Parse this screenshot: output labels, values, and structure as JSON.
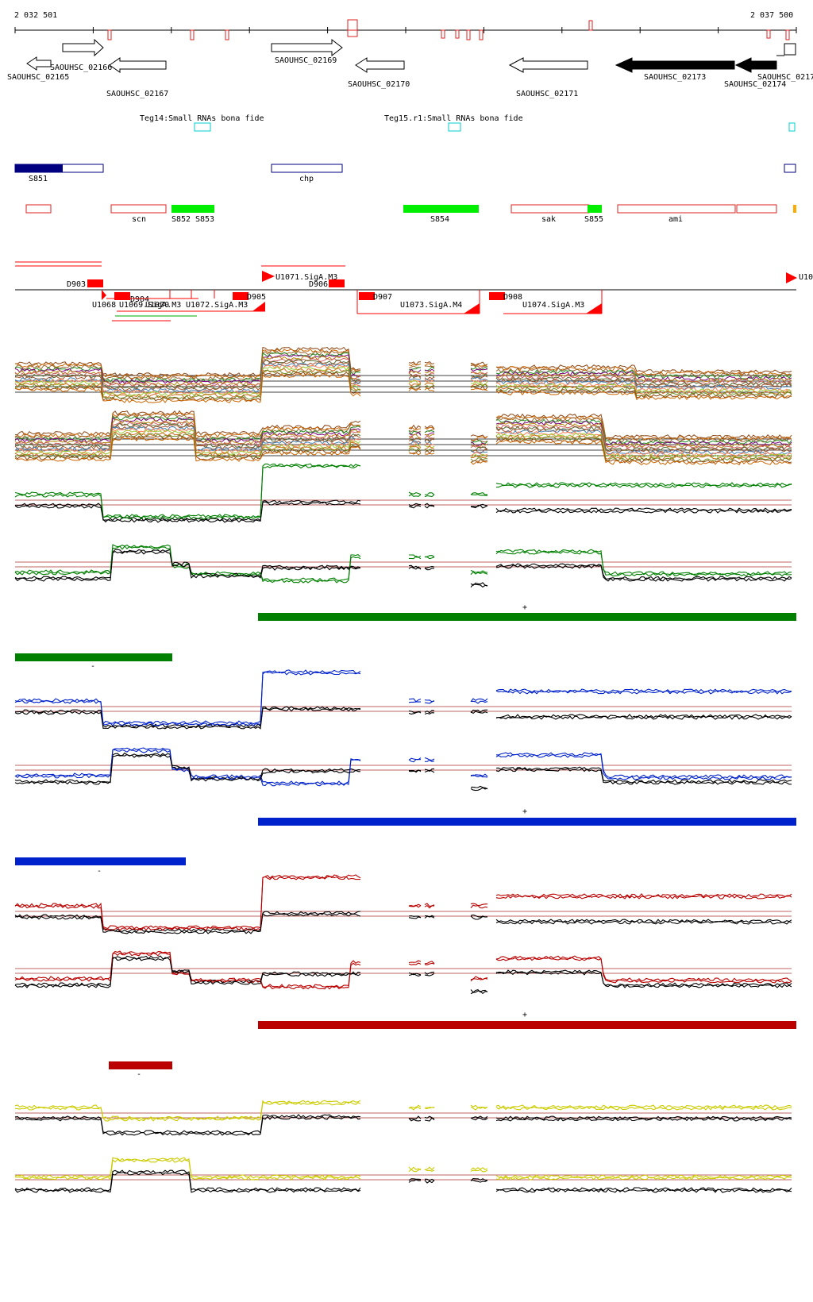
{
  "coords": {
    "start": "2 032 501",
    "end": "2 037 500"
  },
  "genes": [
    {
      "name": "SAOUHSC_02165",
      "filled": false,
      "dir": "left"
    },
    {
      "name": "SAOUHSC_02166",
      "filled": false,
      "dir": "right"
    },
    {
      "name": "SAOUHSC_02167",
      "filled": false,
      "dir": "left"
    },
    {
      "name": "SAOUHSC_02169",
      "filled": false,
      "dir": "right"
    },
    {
      "name": "SAOUHSC_02170",
      "filled": false,
      "dir": "left"
    },
    {
      "name": "SAOUHSC_02171",
      "filled": false,
      "dir": "left"
    },
    {
      "name": "SAOUHSC_02173",
      "filled": true,
      "dir": "left"
    },
    {
      "name": "SAOUHSC_02174",
      "filled": true,
      "dir": "left"
    },
    {
      "name": "SAOUHSC_0217",
      "filled": false,
      "dir": "left"
    }
  ],
  "small_rnas": [
    {
      "name": "Teg14:Small RNAs bona fide"
    },
    {
      "name": "Teg15.r1:Small RNAs bona fide"
    }
  ],
  "blue_features": [
    {
      "name": "S851"
    },
    {
      "name": "chp"
    }
  ],
  "red_features": [
    {
      "name": ""
    },
    {
      "name": "scn"
    },
    {
      "name": "S852"
    },
    {
      "name": "S853"
    },
    {
      "name": "S854"
    },
    {
      "name": "sak"
    },
    {
      "name": "S855"
    },
    {
      "name": "ami"
    }
  ],
  "promoters": [
    {
      "name": "D903"
    },
    {
      "name": "U1068"
    },
    {
      "name": "U1069.SigA.M3"
    },
    {
      "name": "D904"
    },
    {
      "name": "U1070"
    },
    {
      "name": "U1072.SigA.M3"
    },
    {
      "name": "D905"
    },
    {
      "name": "U1071.SigA.M3"
    },
    {
      "name": "D906"
    },
    {
      "name": "D907"
    },
    {
      "name": "U1073.SigA.M4"
    },
    {
      "name": "D908"
    },
    {
      "name": "U1074.SigA.M3"
    },
    {
      "name": "U10"
    }
  ],
  "strands": {
    "plus": "+",
    "minus": "-"
  },
  "colors": {
    "green": "#008000",
    "blue": "#0022cc",
    "red": "#bb0000",
    "yellow": "#cccc00",
    "navy": "#000080",
    "cyan": "#00cccc",
    "bright_green": "#00ee00",
    "feature_red": "#dd2222",
    "promoter_red": "#ff0000",
    "orange": "#ffaa00"
  },
  "condition_panels": [
    {
      "color_key": "green",
      "color": "#008000"
    },
    {
      "color_key": "blue",
      "color": "#0022cc"
    },
    {
      "color_key": "red",
      "color": "#bb0000"
    },
    {
      "color_key": "yellow",
      "color": "#cccc00"
    }
  ]
}
